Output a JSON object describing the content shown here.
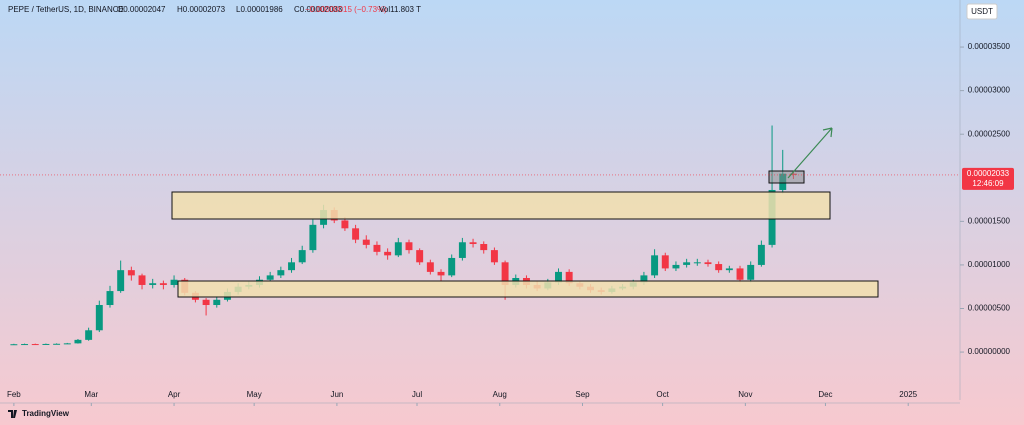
{
  "header": {
    "symbol": "PEPE / TetherUS, 1D, BINANCE",
    "open": "O0.00002047",
    "high": "H0.00002073",
    "low": "L0.00001986",
    "close": "C0.00002033",
    "change": "−0.00000015 (−0.73%)",
    "volume": "Vol11.803 T",
    "currency": "USDT",
    "countdown": "12:46:09",
    "brand": "TradingView"
  },
  "chart_data": {
    "type": "candlestick",
    "up_color": "#089981",
    "down_color": "#f23645",
    "categories": [
      null,
      null,
      null,
      null,
      null,
      null,
      null,
      null,
      null,
      null,
      null,
      null,
      null,
      null,
      null,
      null,
      null,
      null,
      null,
      null,
      null,
      null,
      null,
      null,
      null,
      null,
      null,
      null,
      null,
      null,
      null,
      null,
      null,
      null,
      null,
      null,
      null,
      null,
      null,
      null,
      null,
      null,
      null,
      null,
      null,
      null,
      null,
      null,
      null,
      null,
      null,
      null,
      null,
      null,
      null,
      null,
      null,
      null,
      null,
      null,
      null,
      null,
      null,
      null,
      null,
      null,
      null,
      null,
      null,
      null,
      null,
      null,
      null,
      null
    ],
    "open": [
      8.8e-07,
      9e-07,
      9.2e-07,
      9e-07,
      9.3e-07,
      9.5e-07,
      1e-06,
      1.4e-06,
      2.5e-06,
      5.4e-06,
      7e-06,
      9.4e-06,
      8.8e-06,
      7.7e-06,
      7.9e-06,
      7.7e-06,
      8.3e-06,
      6.8e-06,
      6e-06,
      5.4e-06,
      6e-06,
      6.9e-06,
      7.5e-06,
      7.7e-06,
      8.3e-06,
      8.8e-06,
      9.4e-06,
      1.03e-05,
      1.17e-05,
      1.46e-05,
      1.63e-05,
      1.51e-05,
      1.42e-05,
      1.29e-05,
      1.23e-05,
      1.15e-05,
      1.11e-05,
      1.26e-05,
      1.17e-05,
      1.03e-05,
      9.2e-06,
      8.8e-06,
      1.08e-05,
      1.26e-05,
      1.24e-05,
      1.17e-05,
      1.03e-05,
      7.7e-06,
      8.5e-06,
      7.7e-06,
      7.3e-06,
      8e-06,
      9.2e-06,
      7.9e-06,
      7.5e-06,
      7.1e-06,
      6.9e-06,
      7.3e-06,
      7.5e-06,
      8e-06,
      8.8e-06,
      1.11e-05,
      9.6e-06,
      1e-05,
      1.03e-05,
      1.03e-05,
      1.01e-05,
      9.4e-06,
      9.6e-06,
      8.3e-06,
      1e-05,
      1.23e-05,
      1.86e-05,
      2.047e-05
    ],
    "high": [
      9.5e-07,
      9.7e-07,
      9.7e-07,
      9.8e-07,
      1e-06,
      1.05e-06,
      1.5e-06,
      2.8e-06,
      5.9e-06,
      7.6e-06,
      1.05e-05,
      9.8e-06,
      9e-06,
      8.4e-06,
      8.2e-06,
      8.8e-06,
      8.5e-06,
      7e-06,
      6.2e-06,
      6.4e-06,
      7.3e-06,
      7.9e-06,
      8.1e-06,
      8.7e-06,
      9.2e-06,
      9.8e-06,
      1.08e-05,
      1.22e-05,
      1.52e-05,
      1.69e-05,
      1.66e-05,
      1.55e-05,
      1.46e-05,
      1.34e-05,
      1.27e-05,
      1.19e-05,
      1.31e-05,
      1.29e-05,
      1.19e-05,
      1.06e-05,
      9.5e-06,
      1.12e-05,
      1.31e-05,
      1.3e-05,
      1.27e-05,
      1.2e-05,
      1.05e-05,
      8.9e-06,
      8.8e-06,
      8.1e-06,
      8.4e-06,
      9.6e-06,
      9.5e-06,
      8.2e-06,
      7.8e-06,
      7.4e-06,
      7.6e-06,
      7.8e-06,
      8.3e-06,
      9.2e-06,
      1.18e-05,
      1.14e-05,
      1.04e-05,
      1.07e-05,
      1.07e-05,
      1.06e-05,
      1.04e-05,
      9.9e-06,
      9.9e-06,
      1.04e-05,
      1.28e-05,
      2.6e-05,
      2.32e-05,
      2.073e-05
    ],
    "low": [
      8.5e-07,
      8.7e-07,
      8.6e-07,
      8.7e-07,
      9e-07,
      9.3e-07,
      9.7e-07,
      1.3e-06,
      2.3e-06,
      5.1e-06,
      6.8e-06,
      8.2e-06,
      7.2e-06,
      7.3e-06,
      7.2e-06,
      7.4e-06,
      6.5e-06,
      5.7e-06,
      4.2e-06,
      5.1e-06,
      5.8e-06,
      6.6e-06,
      7.2e-06,
      7.4e-06,
      8.1e-06,
      8.5e-06,
      9.1e-06,
      1.01e-05,
      1.14e-05,
      1.42e-05,
      1.48e-05,
      1.39e-05,
      1.25e-05,
      1.19e-05,
      1.11e-05,
      1.06e-05,
      1.09e-05,
      1.13e-05,
      1e-05,
      8.9e-06,
      8.2e-06,
      8.6e-06,
      1.05e-05,
      1.2e-05,
      1.13e-05,
      1e-05,
      6e-06,
      7.4e-06,
      7.3e-06,
      7e-06,
      7.1e-06,
      7.7e-06,
      7.6e-06,
      7.2e-06,
      6.8e-06,
      6.6e-06,
      6.7e-06,
      7.1e-06,
      7.2e-06,
      7.7e-06,
      8.5e-06,
      9.3e-06,
      9.3e-06,
      9.7e-06,
      9.9e-06,
      9.8e-06,
      9.1e-06,
      9.1e-06,
      8e-06,
      8e-06,
      9.8e-06,
      1.2e-05,
      1.82e-05,
      1.986e-05
    ],
    "close": [
      9e-07,
      9.2e-07,
      9e-07,
      9.3e-07,
      9.5e-07,
      1e-06,
      1.4e-06,
      2.5e-06,
      5.4e-06,
      7e-06,
      9.4e-06,
      8.8e-06,
      7.7e-06,
      7.9e-06,
      7.7e-06,
      8.3e-06,
      6.8e-06,
      6e-06,
      5.4e-06,
      6e-06,
      6.9e-06,
      7.5e-06,
      7.7e-06,
      8.3e-06,
      8.8e-06,
      9.4e-06,
      1.03e-05,
      1.17e-05,
      1.46e-05,
      1.63e-05,
      1.51e-05,
      1.42e-05,
      1.29e-05,
      1.23e-05,
      1.15e-05,
      1.11e-05,
      1.26e-05,
      1.17e-05,
      1.03e-05,
      9.2e-06,
      8.8e-06,
      1.08e-05,
      1.26e-05,
      1.24e-05,
      1.17e-05,
      1.03e-05,
      7.7e-06,
      8.5e-06,
      7.7e-06,
      7.3e-06,
      8e-06,
      9.2e-06,
      7.9e-06,
      7.5e-06,
      7.1e-06,
      6.9e-06,
      7.3e-06,
      7.5e-06,
      8e-06,
      8.8e-06,
      1.11e-05,
      9.6e-06,
      1e-05,
      1.03e-05,
      1.03e-05,
      1.01e-05,
      9.4e-06,
      9.6e-06,
      8.3e-06,
      1e-05,
      1.23e-05,
      1.86e-05,
      2.047e-05,
      2.033e-05
    ],
    "last_price": {
      "value": 2.033e-05,
      "label": "0.00002033"
    },
    "ylim": [
      -5.5e-06,
      4.04e-05
    ],
    "yticks": [
      {
        "value": 3.5e-05,
        "label": "0.00003500"
      },
      {
        "value": 3e-05,
        "label": "0.00003000"
      },
      {
        "value": 2.5e-05,
        "label": "0.00002500"
      },
      {
        "value": 1.5e-05,
        "label": "0.00001500"
      },
      {
        "value": 1e-05,
        "label": "0.00001000"
      },
      {
        "value": 5e-06,
        "label": "0.00000500"
      },
      {
        "value": 0,
        "label": "0.00000000"
      }
    ],
    "xlim": [
      -1.3,
      88.6
    ],
    "xticks": [
      {
        "value": 0,
        "label": "Feb"
      },
      {
        "value": 7.25,
        "label": "Mar"
      },
      {
        "value": 15,
        "label": "Apr"
      },
      {
        "value": 22.5,
        "label": "May"
      },
      {
        "value": 30.25,
        "label": "Jun"
      },
      {
        "value": 37.75,
        "label": "Jul"
      },
      {
        "value": 45.5,
        "label": "Aug"
      },
      {
        "value": 53.25,
        "label": "Sep"
      },
      {
        "value": 60.75,
        "label": "Oct"
      },
      {
        "value": 68.5,
        "label": "Nov"
      },
      {
        "value": 76,
        "label": "Dec"
      },
      {
        "value": 83.75,
        "label": "2025"
      }
    ]
  }
}
